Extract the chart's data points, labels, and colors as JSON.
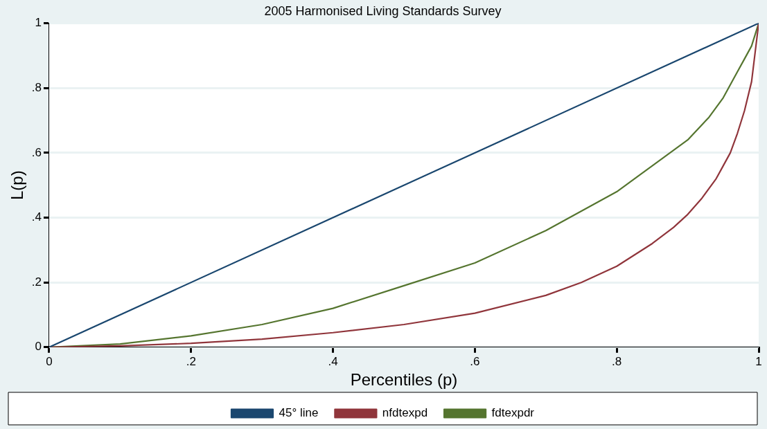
{
  "chart_data": {
    "type": "line",
    "title": "2005 Harmonised Living Standards Survey",
    "xlabel": "Percentiles (p)",
    "ylabel": "L(p)",
    "xlim": [
      0,
      1
    ],
    "ylim": [
      0,
      1
    ],
    "xticks": [
      0,
      {
        "value": 0.2,
        "label": ".2"
      },
      {
        "value": 0.4,
        "label": ".4"
      },
      {
        "value": 0.6,
        "label": ".6"
      },
      {
        "value": 0.8,
        "label": ".8"
      },
      1
    ],
    "yticks": [
      0,
      {
        "value": 0.2,
        "label": ".2"
      },
      {
        "value": 0.4,
        "label": ".4"
      },
      {
        "value": 0.6,
        "label": ".6"
      },
      {
        "value": 0.8,
        "label": ".8"
      },
      1
    ],
    "grid": "y",
    "legend": "bottom",
    "marker": "none",
    "line_style": "solid",
    "series": [
      {
        "name": "45° line",
        "color": "#1a476f",
        "x": [
          0,
          1
        ],
        "values": [
          0,
          1
        ]
      },
      {
        "name": "nfdtexpd",
        "color": "#90353b",
        "x": [
          0,
          0.1,
          0.2,
          0.3,
          0.4,
          0.5,
          0.6,
          0.7,
          0.75,
          0.8,
          0.85,
          0.88,
          0.9,
          0.92,
          0.94,
          0.95,
          0.96,
          0.97,
          0.98,
          0.99,
          1
        ],
        "values": [
          0,
          0.004,
          0.012,
          0.025,
          0.045,
          0.07,
          0.105,
          0.16,
          0.2,
          0.25,
          0.32,
          0.37,
          0.41,
          0.46,
          0.52,
          0.56,
          0.6,
          0.66,
          0.73,
          0.82,
          1
        ]
      },
      {
        "name": "fdtexpdr",
        "color": "#55752f",
        "x": [
          0,
          0.1,
          0.2,
          0.3,
          0.4,
          0.5,
          0.6,
          0.7,
          0.8,
          0.85,
          0.9,
          0.93,
          0.95,
          0.96,
          0.97,
          0.98,
          0.99,
          1
        ],
        "values": [
          0,
          0.01,
          0.035,
          0.07,
          0.12,
          0.19,
          0.26,
          0.36,
          0.48,
          0.56,
          0.64,
          0.71,
          0.77,
          0.81,
          0.85,
          0.89,
          0.93,
          1
        ]
      }
    ]
  }
}
